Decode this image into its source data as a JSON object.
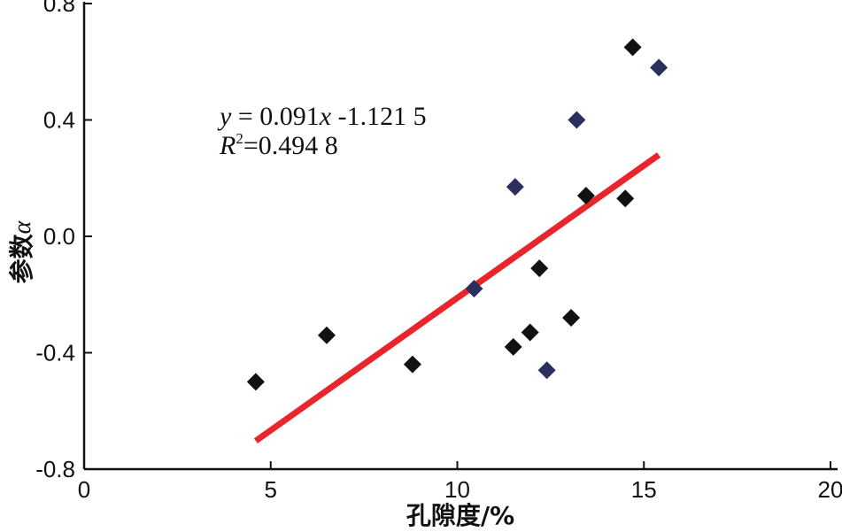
{
  "chart_data": {
    "type": "scatter",
    "xlabel": "孔隙度/%",
    "ylabel_main": "参数",
    "ylabel_symbol": "α",
    "xlim": [
      0,
      20
    ],
    "ylim": [
      -0.8,
      0.8
    ],
    "x_ticks": [
      0,
      5,
      10,
      15,
      20
    ],
    "x_tick_labels": [
      "0",
      "5",
      "10",
      "15",
      "20"
    ],
    "y_ticks": [
      -0.8,
      -0.4,
      0.0,
      0.4,
      0.8
    ],
    "y_tick_labels": [
      "-0.8",
      "-0.4",
      "0.0",
      "0.4",
      "0.8"
    ],
    "grid": false,
    "series": [
      {
        "color": "#111111",
        "marker": "diamond",
        "points": [
          {
            "x": 4.6,
            "y": -0.5
          },
          {
            "x": 6.5,
            "y": -0.34
          },
          {
            "x": 8.8,
            "y": -0.44
          },
          {
            "x": 11.5,
            "y": -0.38
          },
          {
            "x": 11.95,
            "y": -0.33
          },
          {
            "x": 12.2,
            "y": -0.11
          },
          {
            "x": 13.05,
            "y": -0.28
          },
          {
            "x": 13.45,
            "y": 0.14
          },
          {
            "x": 14.5,
            "y": 0.13
          },
          {
            "x": 14.7,
            "y": 0.65
          }
        ]
      },
      {
        "color": "#2a2f5e",
        "marker": "diamond",
        "points": [
          {
            "x": 10.45,
            "y": -0.18
          },
          {
            "x": 11.55,
            "y": 0.17
          },
          {
            "x": 12.4,
            "y": -0.46
          },
          {
            "x": 13.2,
            "y": 0.4
          },
          {
            "x": 15.4,
            "y": 0.58
          }
        ]
      }
    ],
    "fit_line": {
      "color": "#e8242c",
      "slope": 0.091,
      "intercept": -1.1215,
      "x_range": [
        4.6,
        15.4
      ]
    },
    "annotation": {
      "eq_y": "y",
      "eq_rest": " = 0.091",
      "eq_x": "x",
      "eq_tail": " -1.121 5",
      "r_symbol": "R",
      "r_sup": "2",
      "r_value": "=0.494 8"
    }
  }
}
